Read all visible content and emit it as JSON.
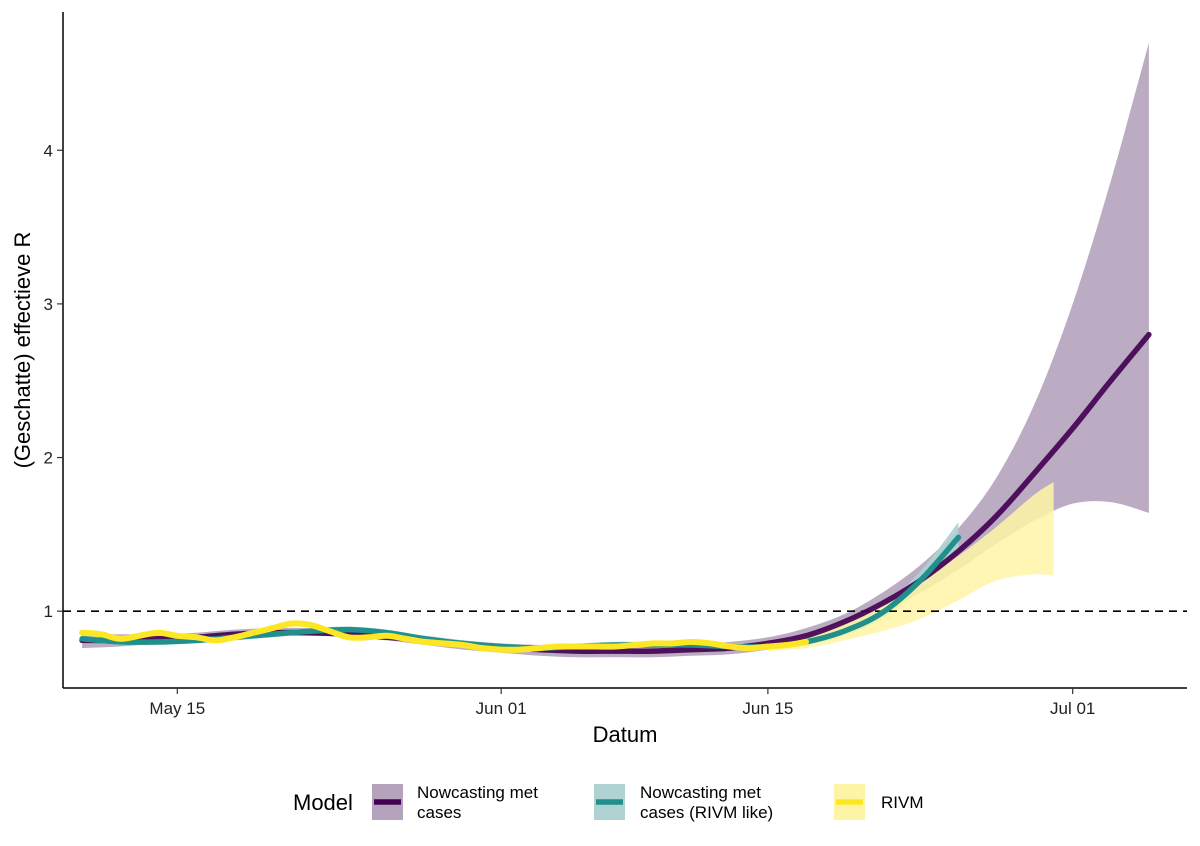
{
  "chart_data": {
    "type": "line",
    "title": "",
    "xlabel": "Datum",
    "ylabel": "(Geschatte) effectieve R",
    "x_axis": {
      "type": "date",
      "range": [
        "2020-05-09",
        "2020-07-07"
      ],
      "ticks": [
        {
          "date": "2020-05-15",
          "label": "May 15"
        },
        {
          "date": "2020-06-01",
          "label": "Jun 01"
        },
        {
          "date": "2020-06-15",
          "label": "Jun 15"
        },
        {
          "date": "2020-07-01",
          "label": "Jul 01"
        }
      ]
    },
    "y_axis": {
      "range": [
        0.5,
        4.9
      ],
      "ticks": [
        {
          "value": 1,
          "label": "1"
        },
        {
          "value": 2,
          "label": "2"
        },
        {
          "value": 3,
          "label": "3"
        },
        {
          "value": 4,
          "label": "4"
        }
      ]
    },
    "reference_line": {
      "y": 1,
      "style": "dashed"
    },
    "grid": false,
    "legend": {
      "title": "Model",
      "position": "bottom",
      "items": [
        {
          "label_lines": [
            "Nowcasting met",
            "cases"
          ],
          "line_color": "#440154",
          "band_color": "#b5a3bd"
        },
        {
          "label_lines": [
            "Nowcasting met",
            "cases (RIVM like)"
          ],
          "line_color": "#21908c",
          "band_color": "#aed3d2"
        },
        {
          "label_lines": [
            "RIVM"
          ],
          "line_color": "#fde725",
          "band_color": "#fef4a5"
        }
      ]
    },
    "series": [
      {
        "name": "Nowcasting met cases",
        "color": "#440154",
        "band_color": "#b5a3bd",
        "x": [
          "2020-05-10",
          "2020-05-12",
          "2020-05-14",
          "2020-05-16",
          "2020-05-18",
          "2020-05-20",
          "2020-05-22",
          "2020-05-24",
          "2020-05-26",
          "2020-05-28",
          "2020-05-30",
          "2020-06-01",
          "2020-06-03",
          "2020-06-05",
          "2020-06-07",
          "2020-06-09",
          "2020-06-11",
          "2020-06-13",
          "2020-06-15",
          "2020-06-17",
          "2020-06-19",
          "2020-06-21",
          "2020-06-23",
          "2020-06-25",
          "2020-06-27",
          "2020-06-29",
          "2020-07-01",
          "2020-07-03",
          "2020-07-05"
        ],
        "y": [
          0.81,
          0.81,
          0.82,
          0.83,
          0.85,
          0.86,
          0.86,
          0.85,
          0.83,
          0.81,
          0.78,
          0.76,
          0.75,
          0.74,
          0.74,
          0.74,
          0.75,
          0.76,
          0.79,
          0.84,
          0.93,
          1.05,
          1.2,
          1.39,
          1.62,
          1.9,
          2.19,
          2.5,
          2.8
        ],
        "lower": [
          0.76,
          0.77,
          0.79,
          0.81,
          0.83,
          0.84,
          0.84,
          0.83,
          0.81,
          0.78,
          0.75,
          0.73,
          0.71,
          0.7,
          0.7,
          0.7,
          0.71,
          0.72,
          0.75,
          0.8,
          0.88,
          0.99,
          1.12,
          1.27,
          1.44,
          1.59,
          1.7,
          1.71,
          1.64
        ],
        "upper": [
          0.85,
          0.85,
          0.85,
          0.86,
          0.88,
          0.89,
          0.89,
          0.88,
          0.86,
          0.84,
          0.81,
          0.79,
          0.78,
          0.77,
          0.77,
          0.77,
          0.78,
          0.8,
          0.83,
          0.89,
          0.98,
          1.12,
          1.3,
          1.54,
          1.87,
          2.35,
          3.0,
          3.8,
          4.7
        ]
      },
      {
        "name": "Nowcasting met cases (RIVM like)",
        "color": "#21908c",
        "band_color": "#aed3d2",
        "x": [
          "2020-05-10",
          "2020-05-12",
          "2020-05-14",
          "2020-05-16",
          "2020-05-18",
          "2020-05-20",
          "2020-05-22",
          "2020-05-24",
          "2020-05-26",
          "2020-05-28",
          "2020-05-30",
          "2020-06-01",
          "2020-06-03",
          "2020-06-05",
          "2020-06-07",
          "2020-06-09",
          "2020-06-11",
          "2020-06-13",
          "2020-06-15",
          "2020-06-17",
          "2020-06-19",
          "2020-06-21",
          "2020-06-23",
          "2020-06-25"
        ],
        "y": [
          0.82,
          0.8,
          0.8,
          0.81,
          0.83,
          0.85,
          0.87,
          0.88,
          0.86,
          0.82,
          0.79,
          0.77,
          0.76,
          0.77,
          0.78,
          0.78,
          0.78,
          0.77,
          0.77,
          0.8,
          0.87,
          0.99,
          1.2,
          1.48
        ],
        "lower": [
          0.8,
          0.78,
          0.78,
          0.79,
          0.81,
          0.83,
          0.85,
          0.86,
          0.84,
          0.8,
          0.77,
          0.75,
          0.74,
          0.75,
          0.76,
          0.76,
          0.76,
          0.75,
          0.75,
          0.78,
          0.84,
          0.95,
          1.15,
          1.4
        ],
        "upper": [
          0.84,
          0.82,
          0.82,
          0.83,
          0.85,
          0.87,
          0.89,
          0.9,
          0.88,
          0.84,
          0.81,
          0.79,
          0.78,
          0.79,
          0.8,
          0.8,
          0.8,
          0.79,
          0.79,
          0.82,
          0.9,
          1.03,
          1.26,
          1.58
        ]
      },
      {
        "name": "RIVM",
        "color": "#fde725",
        "band_color": "#fef4a5",
        "x": [
          "2020-05-10",
          "2020-05-11",
          "2020-05-12",
          "2020-05-13",
          "2020-05-14",
          "2020-05-15",
          "2020-05-16",
          "2020-05-17",
          "2020-05-18",
          "2020-05-19",
          "2020-05-20",
          "2020-05-21",
          "2020-05-22",
          "2020-05-23",
          "2020-05-24",
          "2020-05-25",
          "2020-05-26",
          "2020-05-27",
          "2020-05-28",
          "2020-05-29",
          "2020-05-30",
          "2020-05-31",
          "2020-06-01",
          "2020-06-02",
          "2020-06-03",
          "2020-06-04",
          "2020-06-05",
          "2020-06-06",
          "2020-06-07",
          "2020-06-08",
          "2020-06-09",
          "2020-06-10",
          "2020-06-11",
          "2020-06-12",
          "2020-06-13",
          "2020-06-14",
          "2020-06-15",
          "2020-06-16",
          "2020-06-17"
        ],
        "y": [
          0.86,
          0.85,
          0.82,
          0.84,
          0.86,
          0.84,
          0.83,
          0.81,
          0.83,
          0.86,
          0.89,
          0.92,
          0.91,
          0.87,
          0.83,
          0.83,
          0.84,
          0.82,
          0.8,
          0.79,
          0.78,
          0.76,
          0.75,
          0.75,
          0.76,
          0.77,
          0.77,
          0.77,
          0.77,
          0.78,
          0.79,
          0.79,
          0.8,
          0.79,
          0.77,
          0.76,
          0.77,
          0.78,
          0.8
        ],
        "band_x": [
          "2020-06-15",
          "2020-06-17",
          "2020-06-19",
          "2020-06-21",
          "2020-06-23",
          "2020-06-25",
          "2020-06-27",
          "2020-06-29",
          "2020-06-30"
        ],
        "band_lower": [
          0.74,
          0.76,
          0.81,
          0.87,
          0.95,
          1.07,
          1.2,
          1.24,
          1.23
        ],
        "band_upper": [
          0.8,
          0.84,
          0.93,
          1.04,
          1.19,
          1.36,
          1.55,
          1.76,
          1.84
        ]
      }
    ]
  }
}
